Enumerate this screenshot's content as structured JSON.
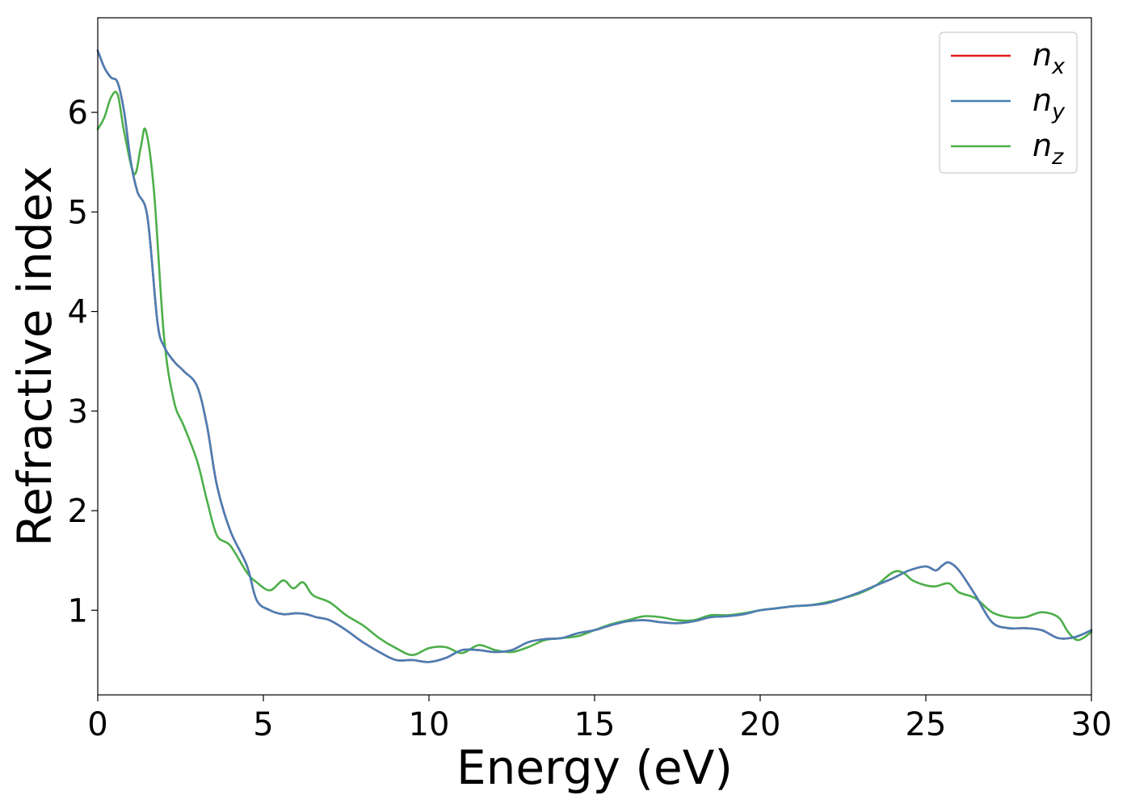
{
  "chart_data": {
    "type": "line",
    "title": "",
    "xlabel": "Energy (eV)",
    "ylabel": "Refractive index",
    "xlim": [
      0,
      30
    ],
    "ylim": [
      0.15,
      6.95
    ],
    "xticks": [
      0,
      5,
      10,
      15,
      20,
      25,
      30
    ],
    "yticks": [
      1,
      2,
      3,
      4,
      5,
      6
    ],
    "grid": false,
    "legend": "top-right",
    "series": [
      {
        "name": "n",
        "subscript": "x",
        "color": "#e41a1c",
        "x": [
          0,
          0.2,
          0.4,
          0.6,
          0.8,
          1.0,
          1.2,
          1.5,
          1.8,
          2.0,
          2.3,
          2.6,
          3.0,
          3.3,
          3.6,
          4.0,
          4.5,
          4.8,
          5.2,
          5.6,
          6.0,
          6.3,
          6.6,
          7.0,
          7.5,
          8.0,
          8.5,
          9.0,
          9.5,
          10.0,
          10.5,
          11.0,
          11.5,
          12.0,
          12.5,
          13.0,
          13.5,
          14.0,
          14.5,
          15.0,
          15.5,
          16.0,
          16.5,
          17.0,
          17.5,
          18.0,
          18.5,
          19.0,
          19.5,
          20.0,
          20.5,
          21.0,
          21.5,
          22.0,
          22.5,
          23.0,
          23.5,
          24.0,
          24.5,
          25.0,
          25.3,
          25.5,
          25.7,
          26.0,
          26.5,
          27.0,
          27.5,
          28.0,
          28.5,
          29.0,
          29.5,
          30.0
        ],
        "y": [
          6.62,
          6.45,
          6.35,
          6.3,
          6.0,
          5.5,
          5.2,
          4.95,
          3.9,
          3.65,
          3.5,
          3.4,
          3.25,
          2.85,
          2.25,
          1.8,
          1.45,
          1.1,
          1.0,
          0.96,
          0.97,
          0.96,
          0.93,
          0.9,
          0.8,
          0.68,
          0.58,
          0.5,
          0.5,
          0.48,
          0.52,
          0.6,
          0.6,
          0.58,
          0.6,
          0.68,
          0.71,
          0.72,
          0.77,
          0.8,
          0.85,
          0.89,
          0.9,
          0.88,
          0.87,
          0.89,
          0.93,
          0.94,
          0.96,
          1.0,
          1.02,
          1.04,
          1.05,
          1.07,
          1.12,
          1.18,
          1.25,
          1.32,
          1.4,
          1.44,
          1.4,
          1.45,
          1.48,
          1.4,
          1.15,
          0.88,
          0.82,
          0.82,
          0.8,
          0.72,
          0.73,
          0.8
        ]
      },
      {
        "name": "n",
        "subscript": "y",
        "color": "#4a7fb5",
        "x": [
          0,
          0.2,
          0.4,
          0.6,
          0.8,
          1.0,
          1.2,
          1.5,
          1.8,
          2.0,
          2.3,
          2.6,
          3.0,
          3.3,
          3.6,
          4.0,
          4.5,
          4.8,
          5.2,
          5.6,
          6.0,
          6.3,
          6.6,
          7.0,
          7.5,
          8.0,
          8.5,
          9.0,
          9.5,
          10.0,
          10.5,
          11.0,
          11.5,
          12.0,
          12.5,
          13.0,
          13.5,
          14.0,
          14.5,
          15.0,
          15.5,
          16.0,
          16.5,
          17.0,
          17.5,
          18.0,
          18.5,
          19.0,
          19.5,
          20.0,
          20.5,
          21.0,
          21.5,
          22.0,
          22.5,
          23.0,
          23.5,
          24.0,
          24.5,
          25.0,
          25.3,
          25.5,
          25.7,
          26.0,
          26.5,
          27.0,
          27.5,
          28.0,
          28.5,
          29.0,
          29.5,
          30.0
        ],
        "y": [
          6.62,
          6.45,
          6.35,
          6.3,
          6.0,
          5.5,
          5.2,
          4.95,
          3.9,
          3.65,
          3.5,
          3.4,
          3.25,
          2.85,
          2.25,
          1.8,
          1.45,
          1.1,
          1.0,
          0.96,
          0.97,
          0.96,
          0.93,
          0.9,
          0.8,
          0.68,
          0.58,
          0.5,
          0.5,
          0.48,
          0.52,
          0.6,
          0.6,
          0.58,
          0.6,
          0.68,
          0.71,
          0.72,
          0.77,
          0.8,
          0.85,
          0.89,
          0.9,
          0.88,
          0.87,
          0.89,
          0.93,
          0.94,
          0.96,
          1.0,
          1.02,
          1.04,
          1.05,
          1.07,
          1.12,
          1.18,
          1.25,
          1.32,
          1.4,
          1.44,
          1.4,
          1.45,
          1.48,
          1.4,
          1.15,
          0.88,
          0.82,
          0.82,
          0.8,
          0.72,
          0.73,
          0.8
        ]
      },
      {
        "name": "n",
        "subscript": "z",
        "color": "#4daf4a",
        "x": [
          0,
          0.2,
          0.4,
          0.6,
          0.8,
          1.1,
          1.3,
          1.45,
          1.7,
          2.0,
          2.3,
          2.6,
          3.0,
          3.3,
          3.6,
          4.0,
          4.5,
          4.8,
          5.2,
          5.6,
          5.9,
          6.2,
          6.5,
          7.0,
          7.5,
          8.0,
          8.5,
          9.0,
          9.5,
          10.0,
          10.5,
          11.0,
          11.5,
          12.0,
          12.5,
          13.0,
          13.5,
          14.0,
          14.5,
          15.0,
          15.5,
          16.0,
          16.5,
          17.0,
          17.5,
          18.0,
          18.5,
          19.0,
          19.5,
          20.0,
          20.5,
          21.0,
          21.5,
          22.0,
          22.5,
          23.0,
          23.5,
          24.0,
          24.3,
          24.6,
          25.0,
          25.3,
          25.7,
          26.0,
          26.5,
          27.0,
          27.5,
          28.0,
          28.5,
          29.0,
          29.3,
          29.6,
          30.0
        ],
        "y": [
          5.83,
          5.95,
          6.15,
          6.18,
          5.8,
          5.38,
          5.65,
          5.82,
          5.2,
          3.75,
          3.1,
          2.85,
          2.5,
          2.1,
          1.75,
          1.65,
          1.38,
          1.28,
          1.2,
          1.3,
          1.22,
          1.28,
          1.15,
          1.08,
          0.95,
          0.85,
          0.72,
          0.62,
          0.55,
          0.62,
          0.63,
          0.57,
          0.65,
          0.6,
          0.58,
          0.63,
          0.7,
          0.72,
          0.74,
          0.8,
          0.86,
          0.9,
          0.94,
          0.93,
          0.9,
          0.9,
          0.95,
          0.95,
          0.97,
          1.0,
          1.02,
          1.04,
          1.05,
          1.08,
          1.12,
          1.17,
          1.25,
          1.38,
          1.38,
          1.3,
          1.25,
          1.24,
          1.27,
          1.18,
          1.12,
          0.98,
          0.93,
          0.93,
          0.98,
          0.93,
          0.78,
          0.7,
          0.78
        ]
      }
    ]
  }
}
